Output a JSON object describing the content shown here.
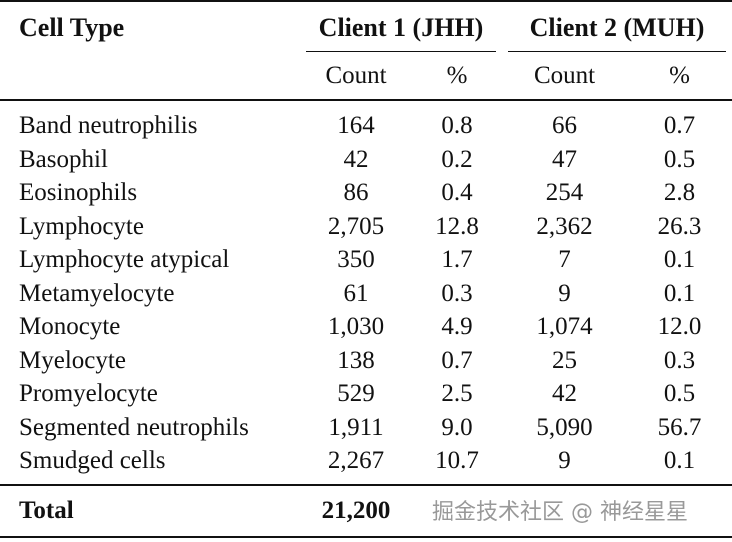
{
  "table": {
    "header": {
      "cell_type": "Cell Type",
      "client1": "Client 1 (JHH)",
      "client2": "Client 2 (MUH)",
      "count": "Count",
      "percent": "%"
    },
    "rows": [
      {
        "type": "Band neutrophilis",
        "c1_count": "164",
        "c1_pct": "0.8",
        "c2_count": "66",
        "c2_pct": "0.7"
      },
      {
        "type": "Basophil",
        "c1_count": "42",
        "c1_pct": "0.2",
        "c2_count": "47",
        "c2_pct": "0.5"
      },
      {
        "type": "Eosinophils",
        "c1_count": "86",
        "c1_pct": "0.4",
        "c2_count": "254",
        "c2_pct": "2.8"
      },
      {
        "type": "Lymphocyte",
        "c1_count": "2,705",
        "c1_pct": "12.8",
        "c2_count": "2,362",
        "c2_pct": "26.3"
      },
      {
        "type": "Lymphocyte atypical",
        "c1_count": "350",
        "c1_pct": "1.7",
        "c2_count": "7",
        "c2_pct": "0.1"
      },
      {
        "type": "Metamyelocyte",
        "c1_count": "61",
        "c1_pct": "0.3",
        "c2_count": "9",
        "c2_pct": "0.1"
      },
      {
        "type": "Monocyte",
        "c1_count": "1,030",
        "c1_pct": "4.9",
        "c2_count": "1,074",
        "c2_pct": "12.0"
      },
      {
        "type": "Myelocyte",
        "c1_count": "138",
        "c1_pct": "0.7",
        "c2_count": "25",
        "c2_pct": "0.3"
      },
      {
        "type": "Promyelocyte",
        "c1_count": "529",
        "c1_pct": "2.5",
        "c2_count": "42",
        "c2_pct": "0.5"
      },
      {
        "type": "Segmented neutrophils",
        "c1_count": "1,911",
        "c1_pct": "9.0",
        "c2_count": "5,090",
        "c2_pct": "56.7"
      },
      {
        "type": "Smudged cells",
        "c1_count": "2,267",
        "c1_pct": "10.7",
        "c2_count": "9",
        "c2_pct": "0.1"
      }
    ],
    "total": {
      "label": "Total",
      "c1_count": "21,200"
    }
  },
  "watermark": "掘金技术社区 @ 神经星星"
}
